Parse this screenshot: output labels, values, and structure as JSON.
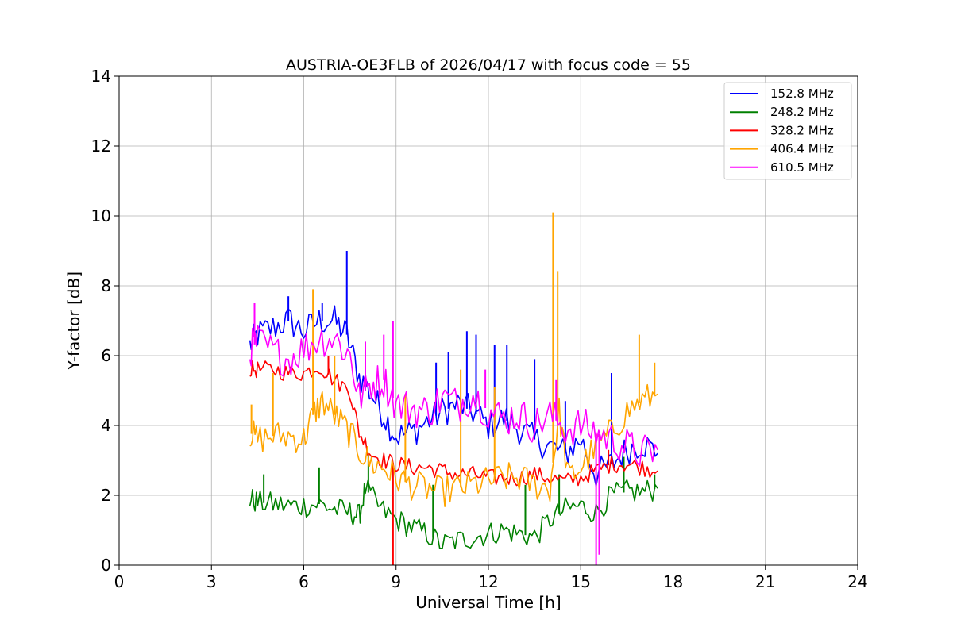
{
  "chart_data": {
    "type": "line",
    "title": "AUSTRIA-OE3FLB of 2026/04/17 with focus code = 55",
    "xlabel": "Universal Time [h]",
    "ylabel": "Y-factor [dB]",
    "xlim": [
      0,
      24
    ],
    "ylim": [
      0,
      14
    ],
    "xticks": [
      0,
      3,
      6,
      9,
      12,
      15,
      18,
      21,
      24
    ],
    "yticks": [
      0,
      2,
      4,
      6,
      8,
      10,
      12,
      14
    ],
    "grid": true,
    "legend_position": "top-right",
    "series": [
      {
        "name": "152.8 MHz",
        "color": "#0000ff",
        "x": [
          4.25,
          4.5,
          5.0,
          5.5,
          6.0,
          6.5,
          7.0,
          7.4,
          7.8,
          8.2,
          8.6,
          9.0,
          9.5,
          10.0,
          10.5,
          11.0,
          11.5,
          12.0,
          12.5,
          13.0,
          13.5,
          14.0,
          14.5,
          15.0,
          15.5,
          16.0,
          16.5,
          17.0,
          17.5
        ],
        "values": [
          6.3,
          6.6,
          6.8,
          7.0,
          6.7,
          7.0,
          7.0,
          6.6,
          5.4,
          4.9,
          4.3,
          3.7,
          3.8,
          4.1,
          4.4,
          4.6,
          4.4,
          4.0,
          4.2,
          3.9,
          3.6,
          3.4,
          3.2,
          3.6,
          2.6,
          2.9,
          3.3,
          3.5,
          3.2
        ],
        "spikes": [
          [
            5.5,
            7.7
          ],
          [
            6.6,
            7.5
          ],
          [
            7.4,
            9.0
          ],
          [
            10.3,
            5.8
          ],
          [
            10.7,
            6.1
          ],
          [
            11.3,
            6.7
          ],
          [
            11.6,
            6.6
          ],
          [
            12.2,
            6.3
          ],
          [
            12.6,
            6.3
          ],
          [
            13.5,
            5.9
          ],
          [
            14.5,
            4.7
          ],
          [
            16.0,
            5.5
          ]
        ]
      },
      {
        "name": "248.2 MHz",
        "color": "#008000",
        "x": [
          4.25,
          4.5,
          5.0,
          5.5,
          6.0,
          6.5,
          7.0,
          7.5,
          7.8,
          8.0,
          8.5,
          9.0,
          9.5,
          10.0,
          10.5,
          11.0,
          11.5,
          12.0,
          12.5,
          13.0,
          13.5,
          14.0,
          14.5,
          15.0,
          15.5,
          16.0,
          16.5,
          17.0,
          17.5
        ],
        "values": [
          1.9,
          1.8,
          1.75,
          1.7,
          1.7,
          1.75,
          1.6,
          1.5,
          1.4,
          2.2,
          1.6,
          1.3,
          1.1,
          0.9,
          0.6,
          0.7,
          0.8,
          0.9,
          1.0,
          0.9,
          0.8,
          1.3,
          1.6,
          1.7,
          1.5,
          2.0,
          2.1,
          2.1,
          2.2
        ],
        "spikes": [
          [
            4.7,
            2.6
          ],
          [
            6.5,
            2.8
          ],
          [
            8.1,
            3.2
          ],
          [
            10.2,
            2.3
          ],
          [
            13.2,
            2.3
          ],
          [
            14.3,
            2.6
          ],
          [
            16.4,
            3.1
          ],
          [
            17.4,
            2.6
          ]
        ]
      },
      {
        "name": "328.2 MHz",
        "color": "#ff0000",
        "x": [
          4.25,
          4.5,
          5.0,
          5.5,
          6.0,
          6.5,
          7.0,
          7.5,
          7.8,
          8.2,
          8.6,
          9.0,
          9.5,
          10.0,
          10.5,
          11.0,
          11.5,
          12.0,
          12.5,
          13.0,
          13.5,
          14.0,
          14.5,
          15.0,
          15.5,
          16.0,
          16.5,
          17.0,
          17.5
        ],
        "values": [
          5.6,
          5.6,
          5.6,
          5.5,
          5.5,
          5.7,
          5.3,
          5.0,
          3.8,
          3.2,
          3.0,
          2.9,
          2.8,
          2.8,
          2.7,
          2.6,
          2.6,
          2.5,
          2.5,
          2.5,
          2.6,
          2.5,
          2.4,
          2.5,
          2.7,
          2.9,
          2.9,
          2.8,
          2.7
        ],
        "spikes": [
          [
            6.8,
            6.0
          ],
          [
            8.9,
            0.0
          ],
          [
            15.9,
            3.3
          ]
        ]
      },
      {
        "name": "406.4 MHz",
        "color": "#ffa500",
        "x": [
          4.25,
          4.5,
          5.0,
          5.5,
          6.0,
          6.3,
          6.6,
          7.0,
          7.4,
          7.8,
          8.2,
          8.6,
          9.0,
          9.5,
          10.0,
          10.5,
          11.0,
          11.5,
          12.0,
          12.5,
          13.0,
          13.5,
          14.0,
          14.3,
          14.6,
          15.0,
          15.5,
          16.0,
          16.5,
          17.0,
          17.5
        ],
        "values": [
          3.8,
          3.6,
          3.7,
          3.7,
          3.6,
          4.3,
          4.7,
          4.3,
          3.9,
          3.3,
          2.9,
          2.8,
          2.5,
          2.3,
          2.2,
          2.1,
          2.2,
          2.3,
          2.4,
          2.5,
          2.5,
          2.3,
          2.2,
          4.4,
          2.5,
          2.8,
          3.4,
          3.8,
          4.4,
          4.7,
          4.9
        ],
        "spikes": [
          [
            4.3,
            4.6
          ],
          [
            5.0,
            5.5
          ],
          [
            6.3,
            7.9
          ],
          [
            7.0,
            6.0
          ],
          [
            9.3,
            4.9
          ],
          [
            11.1,
            5.6
          ],
          [
            12.2,
            5.1
          ],
          [
            14.1,
            10.1
          ],
          [
            14.25,
            8.4
          ],
          [
            16.9,
            6.6
          ],
          [
            17.4,
            5.8
          ]
        ]
      },
      {
        "name": "610.5 MHz",
        "color": "#ff00ff",
        "x": [
          4.25,
          4.5,
          5.0,
          5.5,
          6.0,
          6.5,
          7.0,
          7.5,
          7.8,
          8.2,
          8.6,
          9.0,
          9.5,
          10.0,
          10.5,
          11.0,
          11.5,
          12.0,
          12.5,
          13.0,
          13.5,
          14.0,
          14.5,
          15.0,
          15.5,
          16.0,
          16.5,
          17.0,
          17.5
        ],
        "values": [
          6.2,
          6.4,
          6.1,
          5.9,
          6.2,
          6.5,
          6.5,
          6.0,
          4.8,
          5.2,
          5.3,
          4.6,
          4.5,
          4.4,
          4.8,
          4.6,
          4.9,
          4.4,
          4.2,
          4.3,
          4.0,
          4.3,
          3.9,
          4.0,
          3.8,
          3.6,
          3.4,
          3.2,
          3.3
        ],
        "spikes": [
          [
            4.4,
            7.5
          ],
          [
            8.0,
            6.4
          ],
          [
            8.6,
            6.6
          ],
          [
            8.9,
            7.0
          ],
          [
            11.9,
            5.6
          ],
          [
            14.2,
            5.3
          ],
          [
            15.5,
            0.0
          ],
          [
            15.6,
            0.3
          ]
        ]
      }
    ]
  }
}
